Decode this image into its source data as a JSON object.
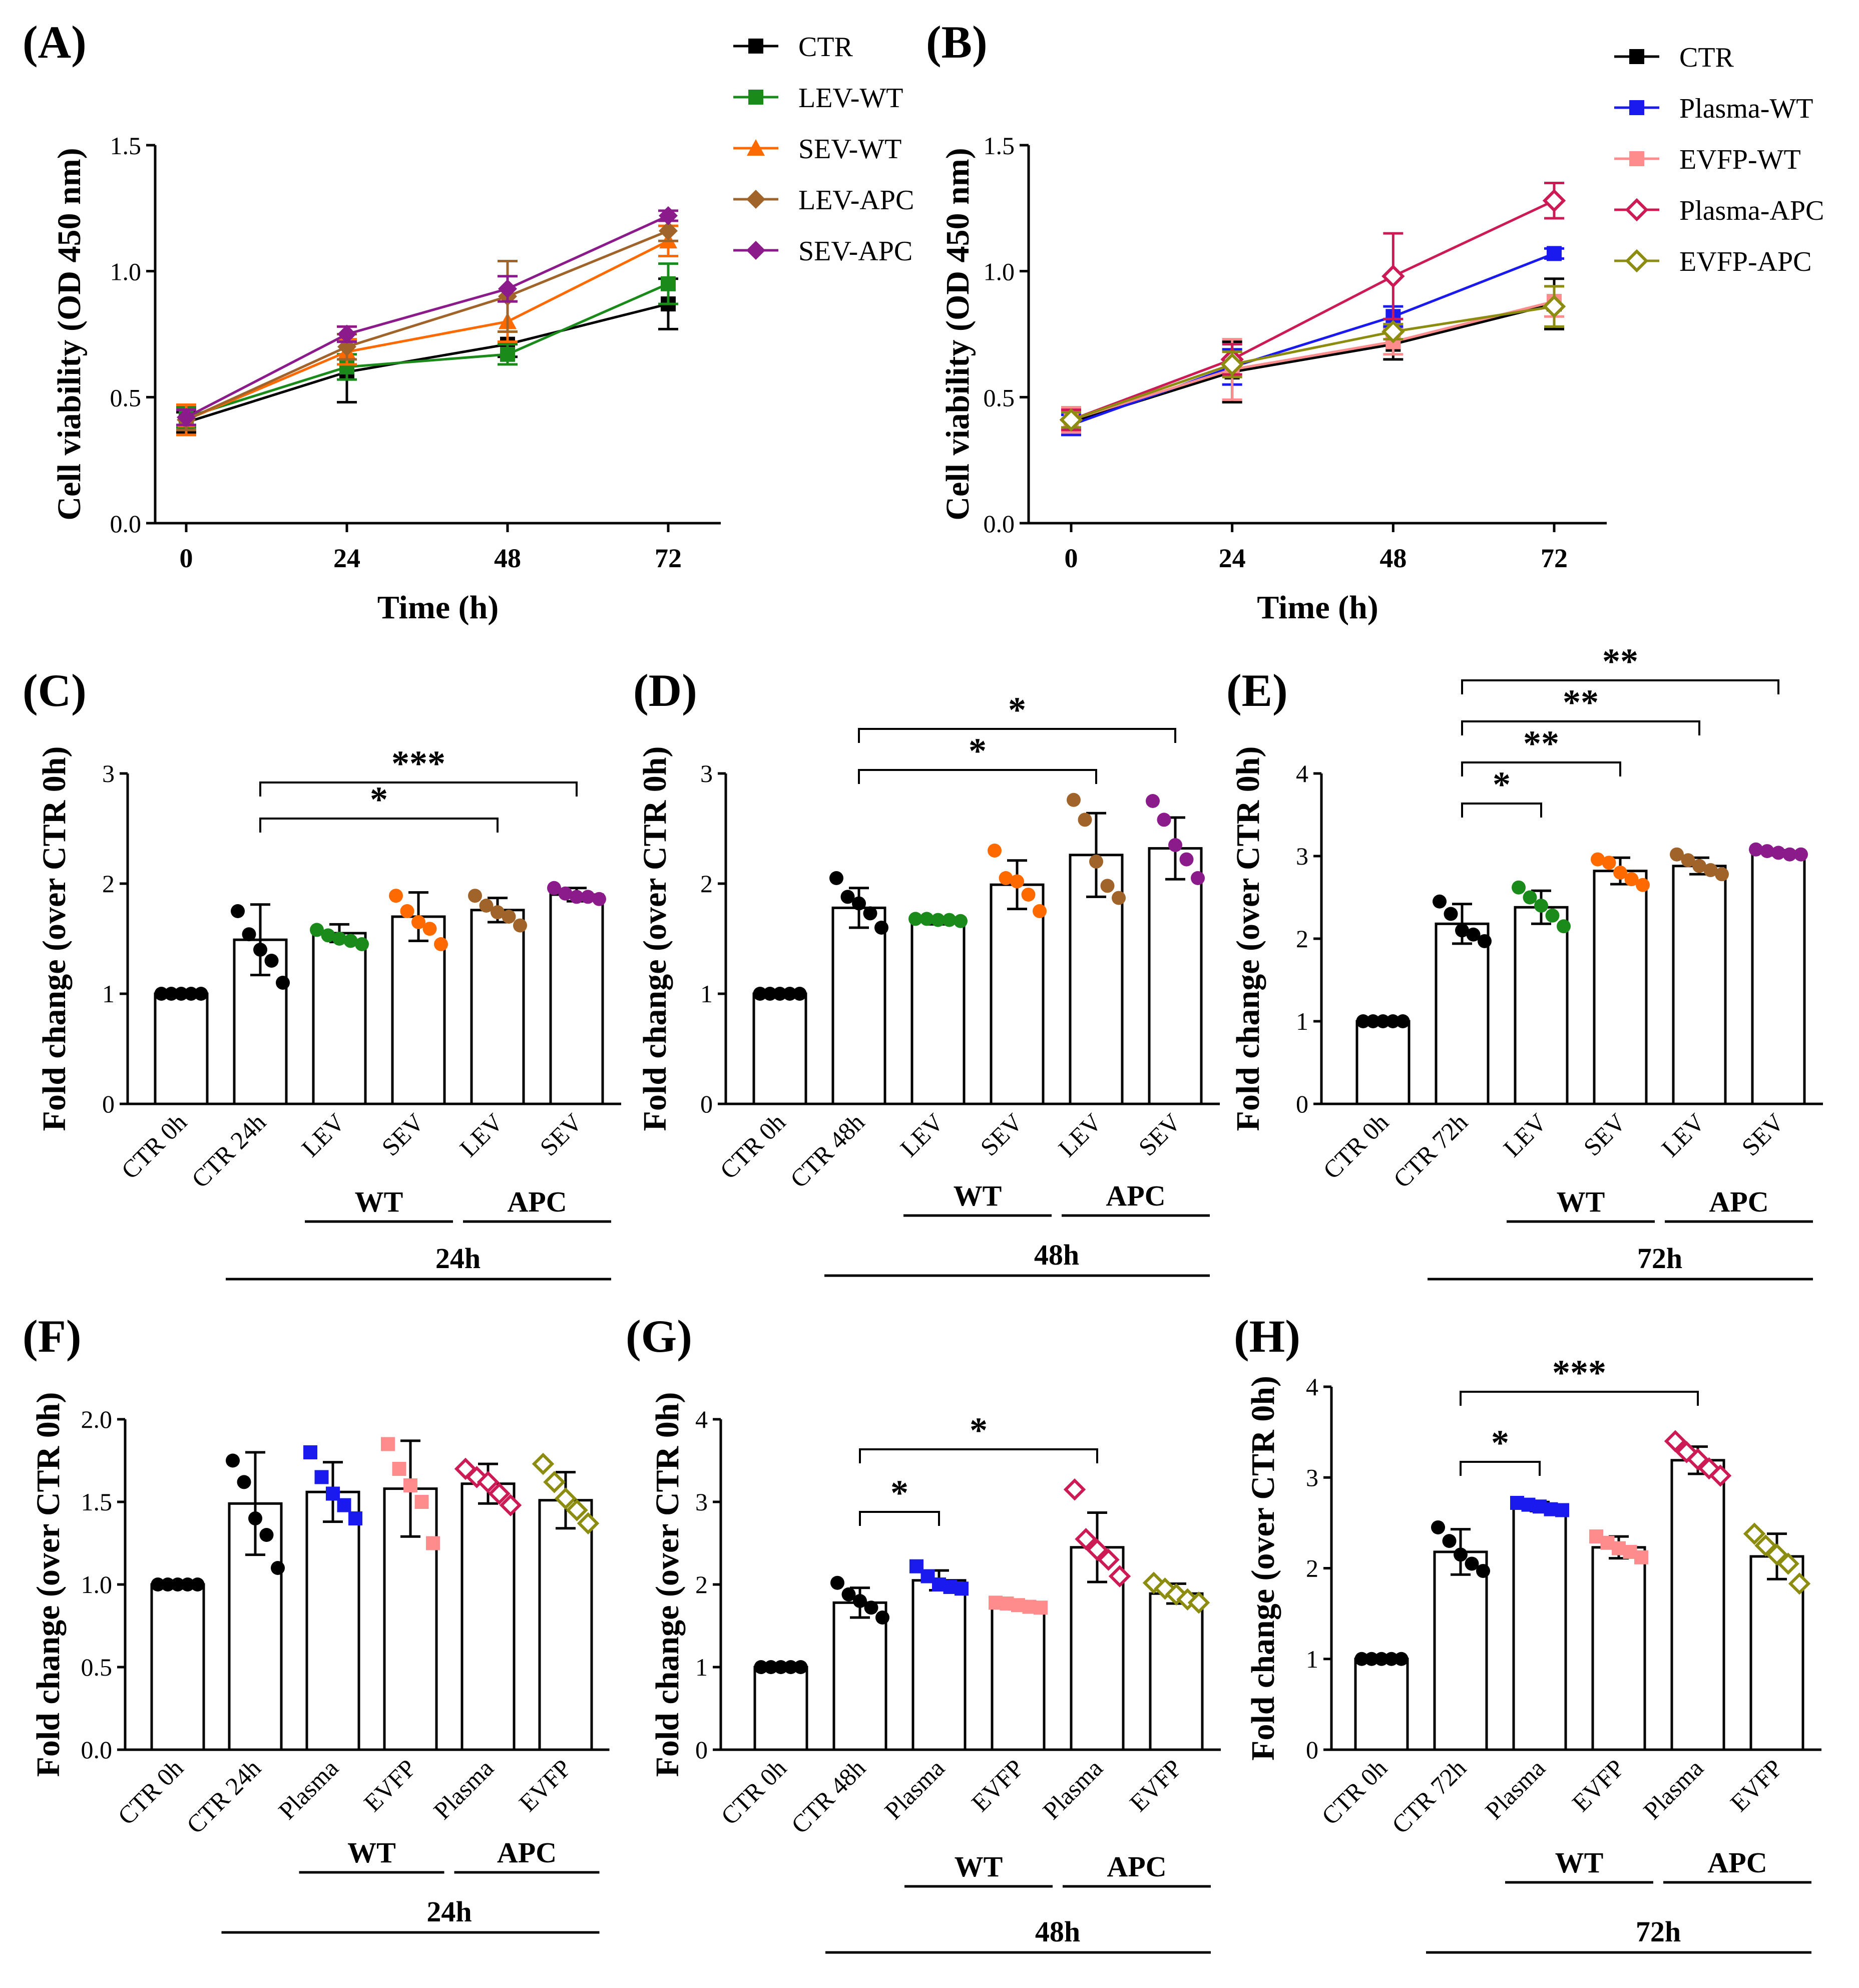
{
  "panels": {
    "A": {
      "letter": "(A)",
      "chart_data": {
        "type": "line",
        "title": "",
        "xlabel": "Time (h)",
        "ylabel": "Cell viability (OD 450 nm)",
        "ylim": [
          0,
          1.5
        ],
        "yticks": [
          "0.0",
          "0.5",
          "1.0",
          "1.5"
        ],
        "x": [
          0,
          24,
          48,
          72
        ],
        "xticks": [
          "0",
          "24",
          "48",
          "72"
        ],
        "legend_position": "top-right",
        "series": [
          {
            "name": "CTR",
            "color": "#000000",
            "marker": "square",
            "values": [
              0.4,
              0.6,
              0.71,
              0.87
            ],
            "err": [
              0.04,
              0.12,
              0.05,
              0.1
            ]
          },
          {
            "name": "LEV-WT",
            "color": "#1a8a1a",
            "marker": "square",
            "values": [
              0.42,
              0.62,
              0.67,
              0.95
            ],
            "err": [
              0.04,
              0.05,
              0.04,
              0.08
            ]
          },
          {
            "name": "SEV-WT",
            "color": "#ff6a00",
            "marker": "triangle",
            "values": [
              0.41,
              0.68,
              0.8,
              1.12
            ],
            "err": [
              0.06,
              0.05,
              0.08,
              0.06
            ]
          },
          {
            "name": "LEV-APC",
            "color": "#a0642a",
            "marker": "diamond",
            "values": [
              0.41,
              0.7,
              0.9,
              1.16
            ],
            "err": [
              0.04,
              0.05,
              0.14,
              0.04
            ]
          },
          {
            "name": "SEV-APC",
            "color": "#8b1a8b",
            "marker": "diamond",
            "values": [
              0.42,
              0.75,
              0.93,
              1.22
            ],
            "err": [
              0.03,
              0.03,
              0.05,
              0.02
            ]
          }
        ]
      }
    },
    "B": {
      "letter": "(B)",
      "chart_data": {
        "type": "line",
        "title": "",
        "xlabel": "Time (h)",
        "ylabel": "Cell viability (OD 450 nm)",
        "ylim": [
          0,
          1.5
        ],
        "yticks": [
          "0.0",
          "0.5",
          "1.0",
          "1.5"
        ],
        "x": [
          0,
          24,
          48,
          72
        ],
        "xticks": [
          "0",
          "24",
          "48",
          "72"
        ],
        "legend_position": "top-right",
        "series": [
          {
            "name": "CTR",
            "color": "#000000",
            "marker": "square",
            "values": [
              0.4,
              0.6,
              0.71,
              0.87
            ],
            "err": [
              0.04,
              0.12,
              0.06,
              0.1
            ]
          },
          {
            "name": "Plasma-WT",
            "color": "#1a1aee",
            "marker": "square",
            "values": [
              0.39,
              0.62,
              0.82,
              1.07
            ],
            "err": [
              0.04,
              0.07,
              0.04,
              0.02
            ]
          },
          {
            "name": "EVFP-WT",
            "color": "#ff8c8c",
            "marker": "square",
            "values": [
              0.41,
              0.61,
              0.72,
              0.88
            ],
            "err": [
              0.05,
              0.12,
              0.05,
              0.06
            ]
          },
          {
            "name": "Plasma-APC",
            "color": "#cc1a55",
            "marker": "diamond-open",
            "values": [
              0.41,
              0.65,
              0.98,
              1.28
            ],
            "err": [
              0.04,
              0.06,
              0.17,
              0.07
            ]
          },
          {
            "name": "EVFP-APC",
            "color": "#8c8c10",
            "marker": "diamond-open",
            "values": [
              0.41,
              0.63,
              0.76,
              0.86
            ],
            "err": [
              0.03,
              0.05,
              0.03,
              0.08
            ]
          }
        ]
      }
    },
    "C": {
      "letter": "(C)",
      "chart_data": {
        "type": "bar",
        "ylabel": "Fold change (over CTR 0h)",
        "ylim": [
          0,
          3
        ],
        "yticks": [
          "0",
          "1",
          "2",
          "3"
        ],
        "categories": [
          "CTR 0h",
          "CTR 24h",
          "LEV",
          "SEV",
          "LEV",
          "SEV"
        ],
        "values": [
          1.0,
          1.49,
          1.55,
          1.7,
          1.76,
          1.9
        ],
        "err": [
          0.02,
          0.32,
          0.08,
          0.22,
          0.11,
          0.06
        ],
        "points": [
          [
            1.0,
            1.0,
            1.0,
            1.0,
            1.0
          ],
          [
            1.75,
            1.54,
            1.4,
            1.3,
            1.1
          ],
          [
            1.58,
            1.53,
            1.5,
            1.48,
            1.45
          ],
          [
            1.89,
            1.75,
            1.65,
            1.59,
            1.45
          ],
          [
            1.89,
            1.8,
            1.74,
            1.7,
            1.62
          ],
          [
            1.96,
            1.91,
            1.88,
            1.88,
            1.86
          ]
        ],
        "point_colors": [
          "#000000",
          "#000000",
          "#1a8a1a",
          "#ff6a00",
          "#a0642a",
          "#8b1a8b"
        ],
        "point_marker": "circle",
        "group_labels": [
          "WT",
          "APC"
        ],
        "time_label": "24h",
        "significance": [
          {
            "from": 1,
            "to": 4,
            "label": "*"
          },
          {
            "from": 1,
            "to": 5,
            "label": "***"
          }
        ]
      }
    },
    "D": {
      "letter": "(D)",
      "chart_data": {
        "type": "bar",
        "ylabel": "Fold change (over CTR 0h)",
        "ylim": [
          0,
          3
        ],
        "yticks": [
          "0",
          "1",
          "2",
          "3"
        ],
        "categories": [
          "CTR 0h",
          "CTR 48h",
          "LEV",
          "SEV",
          "LEV",
          "SEV"
        ],
        "values": [
          1.0,
          1.78,
          1.66,
          1.99,
          2.26,
          2.32
        ],
        "err": [
          0.02,
          0.18,
          0.03,
          0.22,
          0.38,
          0.28
        ],
        "points": [
          [
            1.0,
            1.0,
            1.0,
            1.0,
            1.0
          ],
          [
            2.05,
            1.88,
            1.82,
            1.73,
            1.6
          ],
          [
            1.68,
            1.68,
            1.67,
            1.67,
            1.66
          ],
          [
            2.3,
            2.05,
            2.02,
            1.9,
            1.75
          ],
          [
            2.76,
            2.58,
            2.2,
            1.98,
            1.87
          ],
          [
            2.75,
            2.58,
            2.35,
            2.22,
            2.05
          ]
        ],
        "point_colors": [
          "#000000",
          "#000000",
          "#1a8a1a",
          "#ff6a00",
          "#a0642a",
          "#8b1a8b"
        ],
        "point_marker": "circle",
        "group_labels": [
          "WT",
          "APC"
        ],
        "time_label": "48h",
        "significance": [
          {
            "from": 1,
            "to": 4,
            "label": "*"
          },
          {
            "from": 1,
            "to": 5,
            "label": "*"
          }
        ]
      }
    },
    "E": {
      "letter": "(E)",
      "chart_data": {
        "type": "bar",
        "ylabel": "Fold change (over CTR 0h)",
        "ylim": [
          0,
          4
        ],
        "yticks": [
          "0",
          "1",
          "2",
          "3",
          "4"
        ],
        "categories": [
          "CTR 0h",
          "CTR 72h",
          "LEV",
          "SEV",
          "LEV",
          "SEV"
        ],
        "values": [
          1.0,
          2.18,
          2.38,
          2.82,
          2.88,
          3.04
        ],
        "err": [
          0.02,
          0.24,
          0.2,
          0.16,
          0.1,
          0.03
        ],
        "points": [
          [
            1.0,
            1.0,
            1.0,
            1.0,
            1.0
          ],
          [
            2.45,
            2.3,
            2.1,
            2.05,
            1.97
          ],
          [
            2.62,
            2.5,
            2.4,
            2.28,
            2.15
          ],
          [
            2.96,
            2.92,
            2.8,
            2.72,
            2.65
          ],
          [
            3.02,
            2.95,
            2.88,
            2.83,
            2.78
          ],
          [
            3.08,
            3.06,
            3.04,
            3.02,
            3.02
          ]
        ],
        "point_colors": [
          "#000000",
          "#000000",
          "#1a8a1a",
          "#ff6a00",
          "#a0642a",
          "#8b1a8b"
        ],
        "point_marker": "circle",
        "group_labels": [
          "WT",
          "APC"
        ],
        "time_label": "72h",
        "significance": [
          {
            "from": 1,
            "to": 2,
            "label": "*"
          },
          {
            "from": 1,
            "to": 3,
            "label": "**"
          },
          {
            "from": 1,
            "to": 4,
            "label": "**"
          },
          {
            "from": 1,
            "to": 5,
            "label": "**"
          }
        ]
      }
    },
    "F": {
      "letter": "(F)",
      "chart_data": {
        "type": "bar",
        "ylabel": "Fold change (over CTR 0h)",
        "ylim": [
          0,
          2
        ],
        "yticks": [
          "0.0",
          "0.5",
          "1.0",
          "1.5",
          "2.0"
        ],
        "categories": [
          "CTR 0h",
          "CTR 24h",
          "Plasma",
          "EVFP",
          "Plasma",
          "EVFP"
        ],
        "values": [
          1.0,
          1.49,
          1.56,
          1.58,
          1.61,
          1.51
        ],
        "err": [
          0.02,
          0.31,
          0.18,
          0.29,
          0.12,
          0.17
        ],
        "points": [
          [
            1.0,
            1.0,
            1.0,
            1.0,
            1.0
          ],
          [
            1.75,
            1.62,
            1.4,
            1.3,
            1.1
          ],
          [
            1.8,
            1.65,
            1.55,
            1.48,
            1.4
          ],
          [
            1.85,
            1.7,
            1.6,
            1.5,
            1.25
          ],
          [
            1.7,
            1.65,
            1.62,
            1.55,
            1.48
          ],
          [
            1.73,
            1.62,
            1.52,
            1.45,
            1.37
          ]
        ],
        "point_colors": [
          "#000000",
          "#000000",
          "#1a1aee",
          "#ff8c8c",
          "#cc1a55",
          "#8c8c10"
        ],
        "point_marker": "mixed",
        "group_labels": [
          "WT",
          "APC"
        ],
        "time_label": "24h",
        "significance": []
      }
    },
    "G": {
      "letter": "(G)",
      "chart_data": {
        "type": "bar",
        "ylabel": "Fold change (over CTR 0h)",
        "ylim": [
          0,
          4
        ],
        "yticks": [
          "0",
          "1",
          "2",
          "3",
          "4"
        ],
        "categories": [
          "CTR 0h",
          "CTR 48h",
          "Plasma",
          "EVFP",
          "Plasma",
          "EVFP"
        ],
        "values": [
          1.0,
          1.78,
          2.05,
          1.75,
          2.45,
          1.89
        ],
        "err": [
          0.02,
          0.18,
          0.12,
          0.05,
          0.42,
          0.12
        ],
        "points": [
          [
            1.0,
            1.0,
            1.0,
            1.0,
            1.0
          ],
          [
            2.02,
            1.88,
            1.8,
            1.72,
            1.6
          ],
          [
            2.22,
            2.1,
            2.0,
            1.97,
            1.95
          ],
          [
            1.78,
            1.77,
            1.75,
            1.73,
            1.72
          ],
          [
            3.15,
            2.55,
            2.42,
            2.3,
            2.1
          ],
          [
            2.02,
            1.95,
            1.88,
            1.82,
            1.78
          ]
        ],
        "point_colors": [
          "#000000",
          "#000000",
          "#1a1aee",
          "#ff8c8c",
          "#cc1a55",
          "#8c8c10"
        ],
        "point_marker": "mixed",
        "group_labels": [
          "WT",
          "APC"
        ],
        "time_label": "48h",
        "significance": [
          {
            "from": 1,
            "to": 2,
            "label": "*"
          },
          {
            "from": 1,
            "to": 4,
            "label": "*"
          }
        ]
      }
    },
    "H": {
      "letter": "(H)",
      "chart_data": {
        "type": "bar",
        "ylabel": "Fold change (over CTR 0h)",
        "ylim": [
          0,
          4
        ],
        "yticks": [
          "0",
          "1",
          "2",
          "3",
          "4"
        ],
        "categories": [
          "CTR 0h",
          "CTR 72h",
          "Plasma",
          "EVFP",
          "Plasma",
          "EVFP"
        ],
        "values": [
          1.0,
          2.18,
          2.68,
          2.23,
          3.19,
          2.13
        ],
        "err": [
          0.02,
          0.25,
          0.05,
          0.12,
          0.15,
          0.25
        ],
        "points": [
          [
            1.0,
            1.0,
            1.0,
            1.0,
            1.0
          ],
          [
            2.45,
            2.3,
            2.15,
            2.05,
            1.97
          ],
          [
            2.72,
            2.7,
            2.68,
            2.65,
            2.64
          ],
          [
            2.35,
            2.28,
            2.22,
            2.18,
            2.12
          ],
          [
            3.4,
            3.28,
            3.2,
            3.1,
            3.02
          ],
          [
            2.38,
            2.25,
            2.15,
            2.05,
            1.83
          ]
        ],
        "point_colors": [
          "#000000",
          "#000000",
          "#1a1aee",
          "#ff8c8c",
          "#cc1a55",
          "#8c8c10"
        ],
        "point_marker": "mixed",
        "group_labels": [
          "WT",
          "APC"
        ],
        "time_label": "72h",
        "significance": [
          {
            "from": 1,
            "to": 2,
            "label": "*"
          },
          {
            "from": 1,
            "to": 4,
            "label": "***"
          }
        ]
      }
    }
  }
}
